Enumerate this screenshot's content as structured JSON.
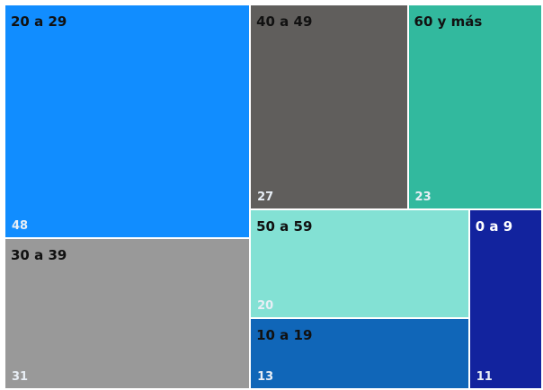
{
  "chart_data": {
    "type": "treemap",
    "categories": [
      "20 a 29",
      "30 a 39",
      "40 a 49",
      "60 y más",
      "50 a 59",
      "10 a 19",
      "0 a 9"
    ],
    "values": [
      48,
      31,
      27,
      23,
      20,
      13,
      11
    ],
    "colors": [
      "#118dff",
      "#999999",
      "#605e5c",
      "#32b99e",
      "#83e1d4",
      "#1066b8",
      "#12239e"
    ],
    "label_colors": [
      "#111111",
      "#111111",
      "#111111",
      "#111111",
      "#111111",
      "#111111",
      "#ffffff"
    ]
  }
}
